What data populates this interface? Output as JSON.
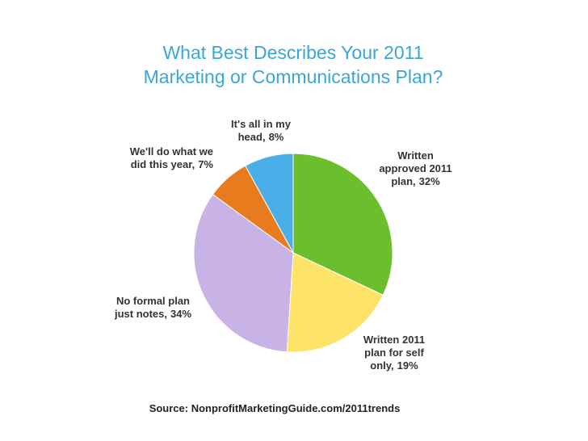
{
  "chart_data": {
    "type": "pie",
    "title": "What Best Describes Your 2011 Marketing or Communications Plan?",
    "categories": [
      "Written approved 2011 plan,",
      "Written 2011 plan for self only,",
      "No formal plan just notes,",
      "We'll do what we did this year,",
      "It's all in my head,"
    ],
    "values": [
      32,
      19,
      34,
      7,
      8
    ],
    "value_labels": [
      "32%",
      "19%",
      "34%",
      "7%",
      "8%"
    ],
    "colors": [
      "#6cbf2c",
      "#fde468",
      "#c8b2e6",
      "#e87b1e",
      "#4aaee8"
    ],
    "source": "Source: NonprofitMarketingGuide.com/2011trends"
  }
}
